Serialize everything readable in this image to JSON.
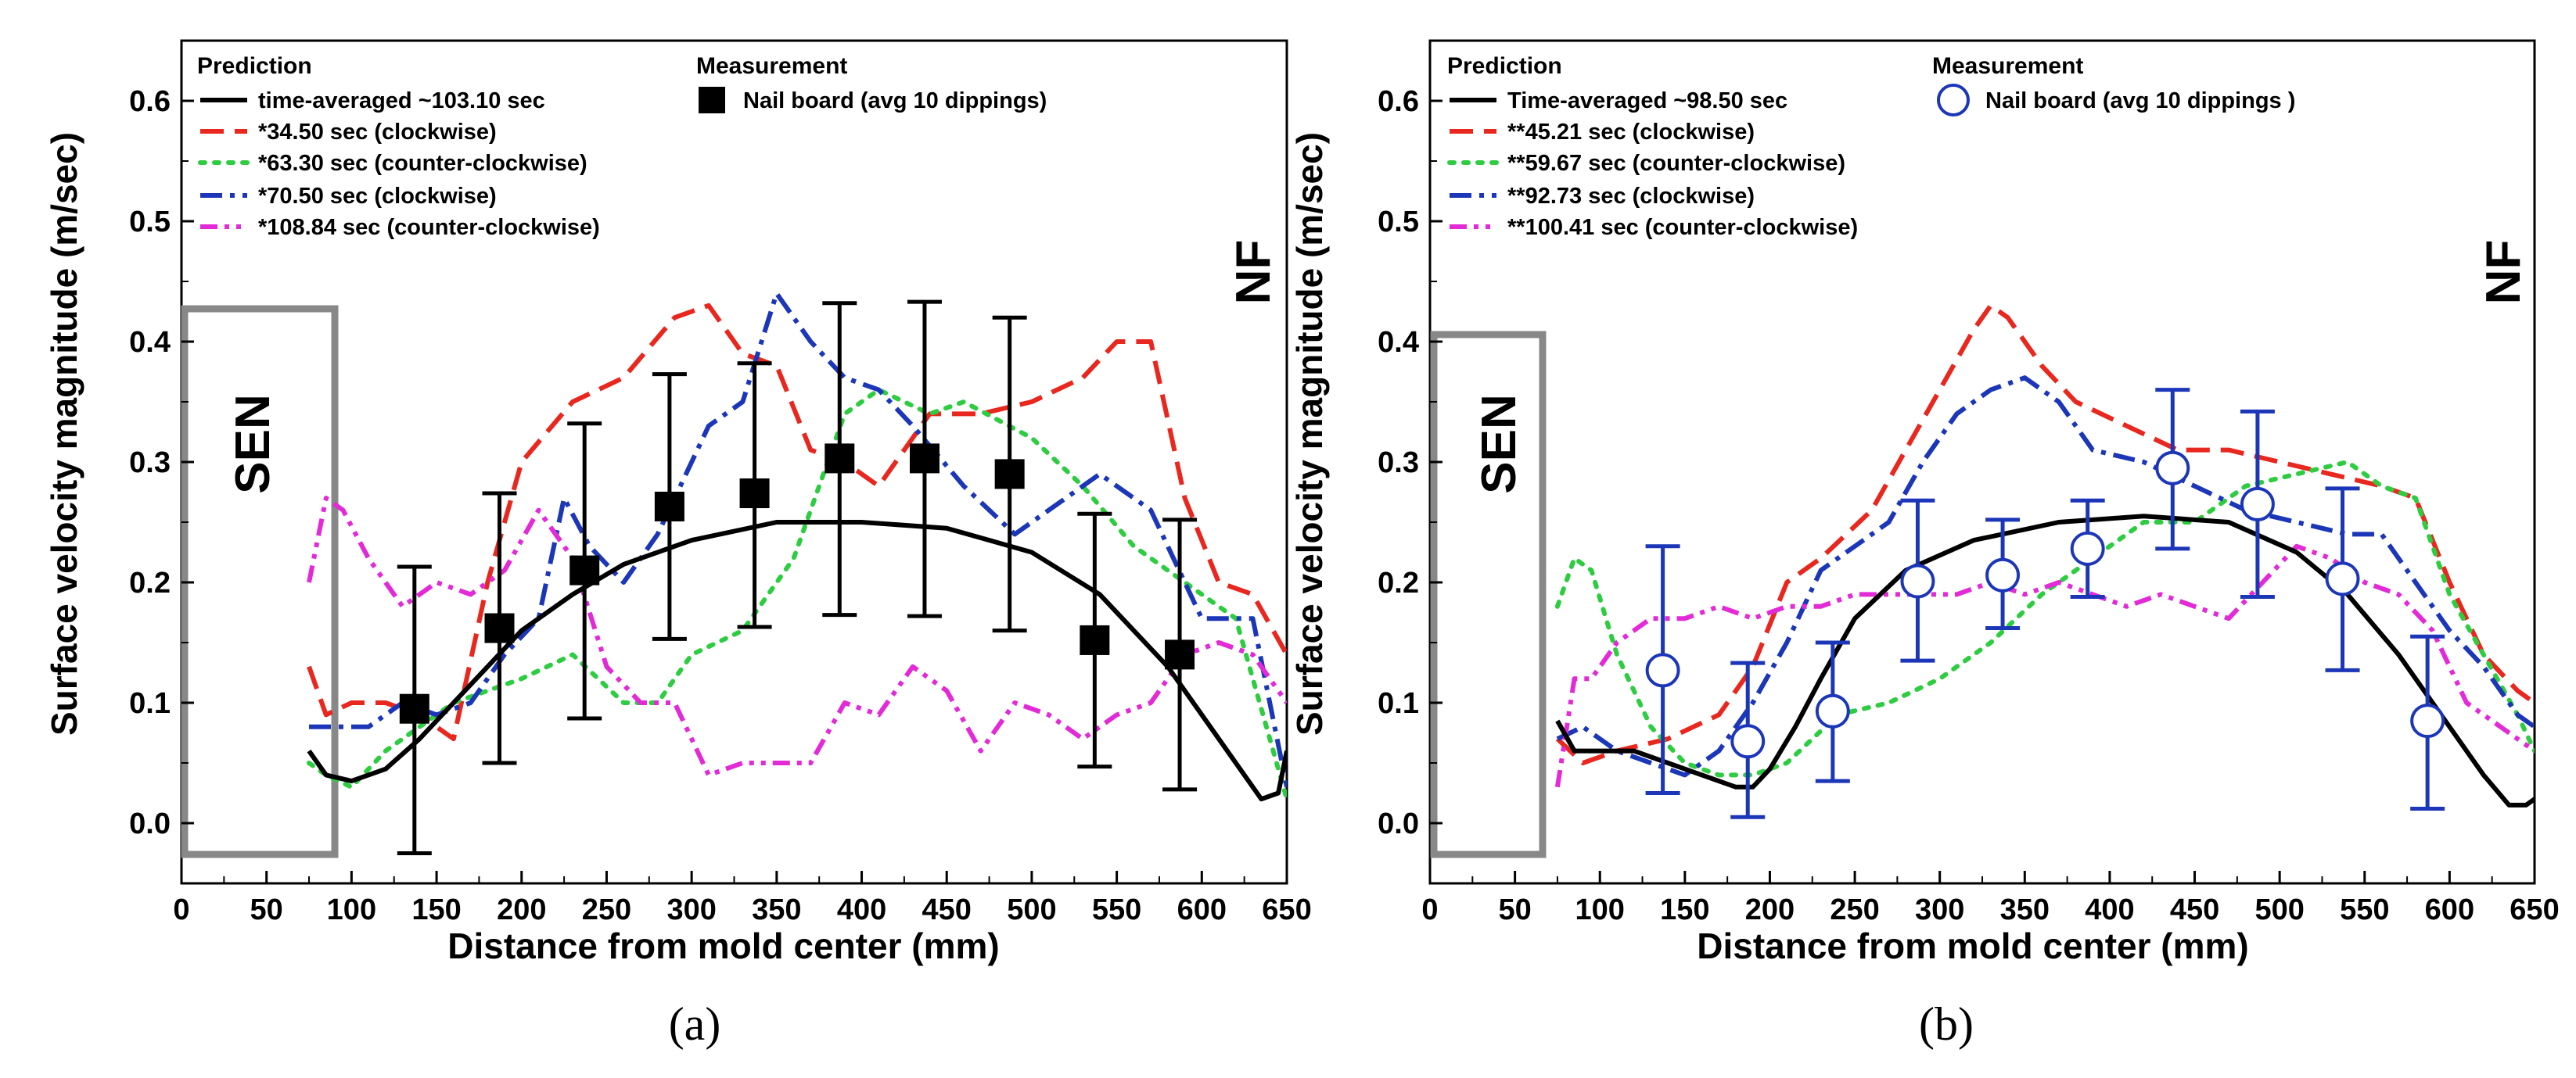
{
  "chart_data": [
    {
      "type": "line",
      "panel_label": "(a)",
      "xlabel": "Distance from mold center (mm)",
      "ylabel": "Surface velocity magnitude (m/sec)",
      "xlim": [
        0,
        650
      ],
      "ylim": [
        -0.05,
        0.65
      ],
      "xticks": [
        "0",
        "50",
        "100",
        "150",
        "200",
        "250",
        "300",
        "350",
        "400",
        "450",
        "500",
        "550",
        "600",
        "650"
      ],
      "yticks": [
        "0.0",
        "0.1",
        "0.2",
        "0.3",
        "0.4",
        "0.5",
        "0.6"
      ],
      "region_labels": {
        "left": "SEN",
        "right": "NF"
      },
      "legend": {
        "prediction_title": "Prediction",
        "measurement_title": "Measurement"
      },
      "series": [
        {
          "name": "time-averaged ~103.10 sec",
          "color": "#000000",
          "dash": "solid",
          "x": [
            75,
            85,
            100,
            120,
            140,
            160,
            180,
            200,
            230,
            260,
            300,
            350,
            400,
            450,
            500,
            540,
            580,
            600,
            620,
            635,
            645,
            650
          ],
          "y": [
            0.06,
            0.04,
            0.035,
            0.045,
            0.07,
            0.1,
            0.13,
            0.16,
            0.19,
            0.215,
            0.235,
            0.25,
            0.25,
            0.245,
            0.225,
            0.19,
            0.13,
            0.09,
            0.05,
            0.02,
            0.025,
            0.06
          ]
        },
        {
          "name": "*34.50 sec (clockwise)",
          "color": "#e8271f",
          "dash": "long",
          "x": [
            75,
            80,
            85,
            100,
            120,
            140,
            160,
            180,
            200,
            230,
            260,
            290,
            310,
            330,
            350,
            370,
            390,
            410,
            440,
            470,
            500,
            530,
            550,
            570,
            590,
            610,
            630,
            650
          ],
          "y": [
            0.13,
            0.11,
            0.09,
            0.1,
            0.1,
            0.09,
            0.07,
            0.2,
            0.3,
            0.35,
            0.37,
            0.42,
            0.43,
            0.39,
            0.38,
            0.31,
            0.3,
            0.28,
            0.34,
            0.34,
            0.35,
            0.37,
            0.4,
            0.4,
            0.27,
            0.2,
            0.19,
            0.14
          ]
        },
        {
          "name": "*63.30 sec (counter-clockwise)",
          "color": "#2ecc40",
          "dash": "dot",
          "x": [
            75,
            85,
            100,
            120,
            140,
            160,
            180,
            200,
            230,
            260,
            280,
            300,
            330,
            360,
            390,
            410,
            440,
            460,
            500,
            530,
            560,
            590,
            620,
            650
          ],
          "y": [
            0.05,
            0.04,
            0.03,
            0.06,
            0.08,
            0.1,
            0.11,
            0.12,
            0.14,
            0.1,
            0.1,
            0.14,
            0.16,
            0.22,
            0.34,
            0.36,
            0.34,
            0.35,
            0.32,
            0.28,
            0.23,
            0.2,
            0.17,
            0.02
          ]
        },
        {
          "name": "*70.50 sec (clockwise)",
          "color": "#1c36b8",
          "dash": "dashdot",
          "x": [
            75,
            90,
            110,
            130,
            150,
            170,
            190,
            210,
            225,
            240,
            260,
            280,
            310,
            330,
            350,
            370,
            390,
            410,
            430,
            460,
            490,
            510,
            540,
            570,
            600,
            630,
            650
          ],
          "y": [
            0.08,
            0.08,
            0.08,
            0.1,
            0.09,
            0.1,
            0.14,
            0.17,
            0.27,
            0.23,
            0.2,
            0.24,
            0.33,
            0.35,
            0.44,
            0.4,
            0.37,
            0.36,
            0.33,
            0.28,
            0.24,
            0.26,
            0.29,
            0.26,
            0.17,
            0.17,
            0.03
          ]
        },
        {
          "name": "*108.84 sec (counter-clockwise)",
          "color": "#e22ad6",
          "dash": "dashdotdot",
          "x": [
            75,
            85,
            95,
            110,
            130,
            150,
            170,
            190,
            210,
            230,
            250,
            270,
            290,
            310,
            330,
            350,
            370,
            390,
            410,
            430,
            450,
            470,
            490,
            510,
            530,
            550,
            570,
            590,
            610,
            630,
            650
          ],
          "y": [
            0.2,
            0.27,
            0.26,
            0.22,
            0.18,
            0.2,
            0.19,
            0.21,
            0.26,
            0.22,
            0.13,
            0.1,
            0.1,
            0.04,
            0.05,
            0.05,
            0.05,
            0.1,
            0.09,
            0.13,
            0.11,
            0.06,
            0.1,
            0.09,
            0.07,
            0.09,
            0.1,
            0.14,
            0.15,
            0.14,
            0.1
          ]
        }
      ],
      "measurement": {
        "name": "Nail board (avg 10 dippings)",
        "marker": "square",
        "color": "#000000",
        "x": [
          137,
          187,
          237,
          287,
          337,
          387,
          437,
          487,
          537,
          587
        ],
        "y": [
          0.095,
          0.162,
          0.21,
          0.263,
          0.274,
          0.303,
          0.303,
          0.29,
          0.152,
          0.14
        ],
        "err_low": [
          -0.025,
          0.05,
          0.087,
          0.153,
          0.163,
          0.173,
          0.172,
          0.16,
          0.047,
          0.028
        ],
        "err_high": [
          0.213,
          0.274,
          0.332,
          0.373,
          0.382,
          0.432,
          0.433,
          0.42,
          0.257,
          0.252
        ]
      }
    },
    {
      "type": "line",
      "panel_label": "(b)",
      "xlabel": "Distance from mold center (mm)",
      "ylabel": "Surface velocity magnitude (m/sec)",
      "xlim": [
        0,
        650
      ],
      "ylim": [
        -0.05,
        0.65
      ],
      "xticks": [
        "0",
        "50",
        "100",
        "150",
        "200",
        "250",
        "300",
        "350",
        "400",
        "450",
        "500",
        "550",
        "600",
        "650"
      ],
      "yticks": [
        "0.0",
        "0.1",
        "0.2",
        "0.3",
        "0.4",
        "0.5",
        "0.6"
      ],
      "region_labels": {
        "left": "SEN",
        "right": "NF"
      },
      "legend": {
        "prediction_title": "Prediction",
        "measurement_title": "Measurement"
      },
      "series": [
        {
          "name": "Time-averaged ~98.50 sec",
          "color": "#000000",
          "dash": "solid",
          "x": [
            75,
            85,
            100,
            120,
            140,
            160,
            180,
            190,
            200,
            215,
            230,
            250,
            280,
            320,
            370,
            420,
            470,
            510,
            540,
            570,
            600,
            620,
            635,
            645,
            650
          ],
          "y": [
            0.085,
            0.06,
            0.06,
            0.06,
            0.05,
            0.04,
            0.03,
            0.03,
            0.045,
            0.08,
            0.12,
            0.17,
            0.21,
            0.235,
            0.25,
            0.255,
            0.25,
            0.225,
            0.19,
            0.14,
            0.08,
            0.04,
            0.015,
            0.015,
            0.02
          ]
        },
        {
          "name": "**45.21 sec (clockwise)",
          "color": "#e8271f",
          "dash": "long",
          "x": [
            75,
            90,
            110,
            140,
            170,
            190,
            210,
            230,
            260,
            280,
            300,
            320,
            330,
            340,
            360,
            380,
            410,
            440,
            470,
            500,
            530,
            560,
            580,
            600,
            620,
            640,
            650
          ],
          "y": [
            0.07,
            0.05,
            0.06,
            0.07,
            0.09,
            0.13,
            0.2,
            0.22,
            0.26,
            0.31,
            0.36,
            0.41,
            0.43,
            0.42,
            0.38,
            0.35,
            0.33,
            0.31,
            0.31,
            0.3,
            0.29,
            0.28,
            0.27,
            0.2,
            0.14,
            0.11,
            0.1
          ]
        },
        {
          "name": "**59.67 sec (counter-clockwise)",
          "color": "#2ecc40",
          "dash": "dot",
          "x": [
            75,
            85,
            95,
            110,
            130,
            150,
            170,
            190,
            210,
            240,
            270,
            300,
            330,
            360,
            390,
            420,
            450,
            480,
            510,
            540,
            560,
            580,
            600,
            620,
            640,
            650
          ],
          "y": [
            0.18,
            0.22,
            0.21,
            0.14,
            0.08,
            0.05,
            0.04,
            0.04,
            0.05,
            0.09,
            0.1,
            0.12,
            0.15,
            0.19,
            0.22,
            0.25,
            0.25,
            0.28,
            0.29,
            0.3,
            0.28,
            0.27,
            0.19,
            0.14,
            0.09,
            0.06
          ]
        },
        {
          "name": "**92.73 sec (clockwise)",
          "color": "#1c36b8",
          "dash": "dashdot",
          "x": [
            75,
            90,
            110,
            130,
            150,
            170,
            190,
            210,
            230,
            250,
            270,
            290,
            310,
            330,
            350,
            370,
            390,
            420,
            450,
            480,
            510,
            540,
            560,
            580,
            600,
            620,
            640,
            650
          ],
          "y": [
            0.07,
            0.08,
            0.06,
            0.05,
            0.04,
            0.06,
            0.1,
            0.15,
            0.21,
            0.23,
            0.25,
            0.3,
            0.34,
            0.36,
            0.37,
            0.35,
            0.31,
            0.3,
            0.28,
            0.26,
            0.25,
            0.24,
            0.24,
            0.2,
            0.16,
            0.13,
            0.09,
            0.08
          ]
        },
        {
          "name": "**100.41 sec (counter-clockwise)",
          "color": "#e22ad6",
          "dash": "dashdotdot",
          "x": [
            75,
            85,
            95,
            110,
            130,
            150,
            170,
            190,
            210,
            230,
            250,
            270,
            290,
            310,
            330,
            350,
            370,
            390,
            410,
            430,
            450,
            470,
            490,
            510,
            530,
            550,
            570,
            590,
            610,
            630,
            650
          ],
          "y": [
            0.03,
            0.12,
            0.12,
            0.15,
            0.17,
            0.17,
            0.18,
            0.17,
            0.18,
            0.18,
            0.19,
            0.19,
            0.19,
            0.19,
            0.2,
            0.19,
            0.2,
            0.19,
            0.18,
            0.19,
            0.18,
            0.17,
            0.2,
            0.23,
            0.22,
            0.2,
            0.19,
            0.16,
            0.1,
            0.08,
            0.06
          ]
        }
      ],
      "measurement": {
        "name": "Nail board (avg 10 dippings )",
        "marker": "circle",
        "color": "#1c36b8",
        "x": [
          137,
          187,
          237,
          287,
          337,
          387,
          437,
          487,
          537,
          587
        ],
        "y": [
          0.127,
          0.068,
          0.093,
          0.201,
          0.206,
          0.228,
          0.295,
          0.265,
          0.203,
          0.085
        ],
        "err_low": [
          0.025,
          0.005,
          0.035,
          0.135,
          0.162,
          0.188,
          0.228,
          0.188,
          0.127,
          0.012
        ],
        "err_high": [
          0.23,
          0.133,
          0.15,
          0.268,
          0.252,
          0.268,
          0.36,
          0.342,
          0.278,
          0.155
        ]
      }
    }
  ]
}
